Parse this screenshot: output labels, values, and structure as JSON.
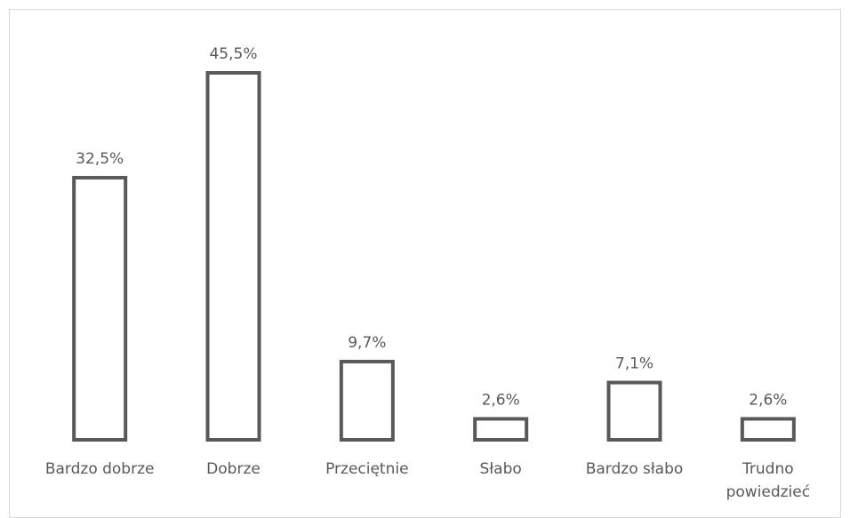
{
  "chart_data": {
    "type": "bar",
    "categories": [
      "Bardzo dobrze",
      "Dobrze",
      "Przeciętnie",
      "Słabo",
      "Bardzo słabo",
      "Trudno powiedzieć"
    ],
    "values": [
      32.5,
      45.5,
      9.7,
      2.6,
      7.1,
      2.6
    ],
    "value_labels": [
      "32,5%",
      "45,5%",
      "9,7%",
      "2,6%",
      "7,1%",
      "2,6%"
    ],
    "color": "#595959"
  }
}
